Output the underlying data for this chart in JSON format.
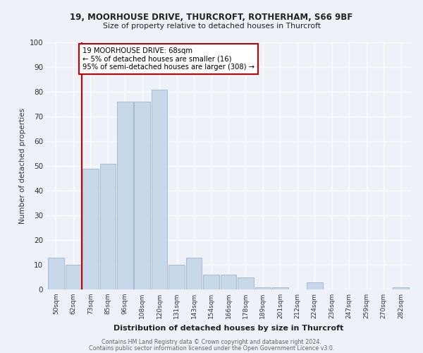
{
  "title1": "19, MOORHOUSE DRIVE, THURCROFT, ROTHERHAM, S66 9BF",
  "title2": "Size of property relative to detached houses in Thurcroft",
  "xlabel": "Distribution of detached houses by size in Thurcroft",
  "ylabel": "Number of detached properties",
  "categories": [
    "50sqm",
    "62sqm",
    "73sqm",
    "85sqm",
    "96sqm",
    "108sqm",
    "120sqm",
    "131sqm",
    "143sqm",
    "154sqm",
    "166sqm",
    "178sqm",
    "189sqm",
    "201sqm",
    "212sqm",
    "224sqm",
    "236sqm",
    "247sqm",
    "259sqm",
    "270sqm",
    "282sqm"
  ],
  "values": [
    13,
    10,
    49,
    51,
    76,
    76,
    81,
    10,
    13,
    6,
    6,
    5,
    1,
    1,
    0,
    3,
    0,
    0,
    0,
    0,
    1
  ],
  "bar_color": "#c8d8eb",
  "bar_edge_color": "#9ab4cc",
  "vline_x_index": 1.5,
  "vline_color": "#cc0000",
  "annotation_text": "19 MOORHOUSE DRIVE: 68sqm\n← 5% of detached houses are smaller (16)\n95% of semi-detached houses are larger (308) →",
  "annotation_box_color": "#ffffff",
  "annotation_box_edge": "#cc0000",
  "background_color": "#eef2f8",
  "footer1": "Contains HM Land Registry data © Crown copyright and database right 2024.",
  "footer2": "Contains public sector information licensed under the Open Government Licence v3.0.",
  "ylim": [
    0,
    100
  ],
  "yticks": [
    0,
    10,
    20,
    30,
    40,
    50,
    60,
    70,
    80,
    90,
    100
  ]
}
